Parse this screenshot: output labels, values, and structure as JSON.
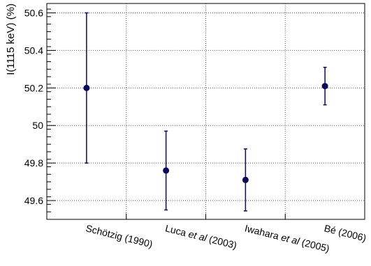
{
  "chart_data": {
    "type": "scatter",
    "title": "",
    "xlabel": "",
    "ylabel": "I(1115 keV) (%)",
    "ylim": [
      49.5,
      50.65
    ],
    "yticks": [
      "49.6",
      "49.8",
      "50",
      "50.2",
      "50.4",
      "50.6"
    ],
    "ytick_values": [
      49.6,
      49.8,
      50.0,
      50.2,
      50.4,
      50.6
    ],
    "grid": true,
    "marker_color": "#0a0a5c",
    "points": [
      {
        "category": "Schötzig (1990)",
        "value": 50.2,
        "err_low": 0.4,
        "err_high": 0.4
      },
      {
        "category": "Luca et al (2003)",
        "value": 49.76,
        "err_low": 0.21,
        "err_high": 0.21
      },
      {
        "category": "Iwahara et al (2005)",
        "value": 49.71,
        "err_low": 0.165,
        "err_high": 0.165
      },
      {
        "category": "Bé (2006)",
        "value": 50.21,
        "err_low": 0.1,
        "err_high": 0.1
      }
    ]
  },
  "labels": {
    "ylabel": "I(1115 keV) (%)",
    "categories": [
      {
        "pre": "Schötzig (1990)",
        "em": "",
        "post": ""
      },
      {
        "pre": "Luca ",
        "em": "et al",
        "post": " (2003)"
      },
      {
        "pre": "Iwahara ",
        "em": "et al",
        "post": " (2005)"
      },
      {
        "pre": "Bé (2006)",
        "em": "",
        "post": ""
      }
    ]
  }
}
